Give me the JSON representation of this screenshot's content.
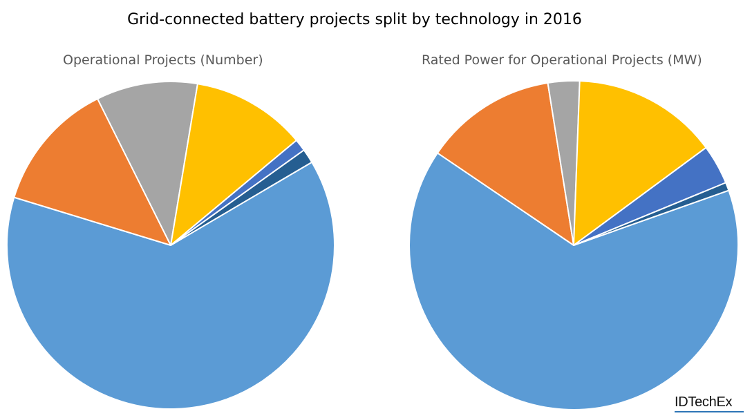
{
  "title": "Grid-connected battery projects split by technology in 2016",
  "brand": "IDTechEx",
  "chart_data": [
    {
      "type": "pie",
      "title": "Operational Projects (Number)",
      "start_angle_deg": -30.5,
      "slices": [
        {
          "value": 63.2,
          "color": "#5b9bd5"
        },
        {
          "value": 12.9,
          "color": "#ed7d31"
        },
        {
          "value": 10.0,
          "color": "#a5a5a5"
        },
        {
          "value": 11.3,
          "color": "#ffc000"
        },
        {
          "value": 1.2,
          "color": "#4472c4"
        },
        {
          "value": 1.4,
          "color": "#255e91"
        }
      ]
    },
    {
      "type": "pie",
      "title": "Rated Power for Operational Projects (MW)",
      "start_angle_deg": -19.5,
      "slices": [
        {
          "value": 64.9,
          "color": "#5b9bd5"
        },
        {
          "value": 13.0,
          "color": "#ed7d31"
        },
        {
          "value": 3.1,
          "color": "#a5a5a5"
        },
        {
          "value": 14.3,
          "color": "#ffc000"
        },
        {
          "value": 3.9,
          "color": "#4472c4"
        },
        {
          "value": 0.8,
          "color": "#255e91"
        }
      ]
    }
  ]
}
